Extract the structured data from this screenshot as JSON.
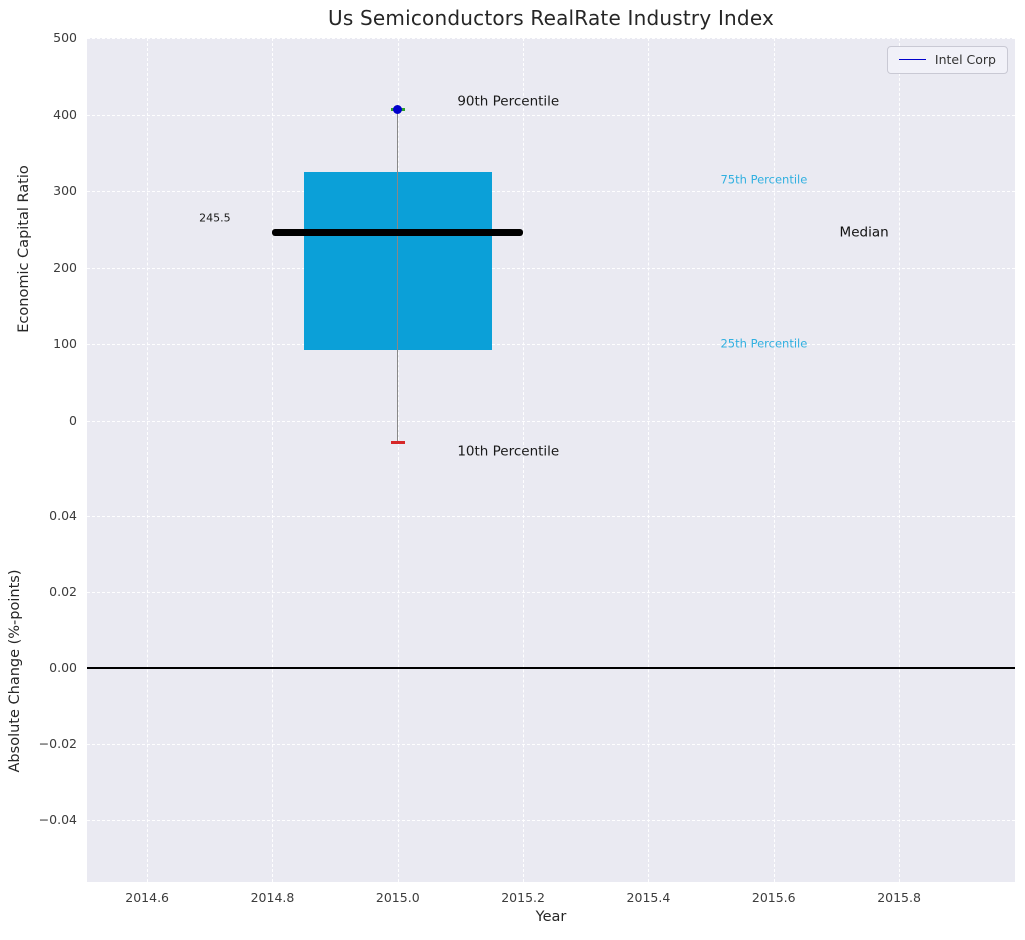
{
  "title": "Us Semiconductors RealRate Industry Index",
  "legend": {
    "position": "upper right",
    "items": [
      {
        "label": "Intel Corp",
        "color": "#0000cc"
      }
    ]
  },
  "axes": {
    "x": {
      "label": "Year",
      "range": [
        2014.504,
        2015.985
      ],
      "tick_values": [
        2014.6,
        2014.8,
        2015.0,
        2015.2,
        2015.4,
        2015.6,
        2015.8
      ],
      "tick_labels": [
        "2014.6",
        "2014.8",
        "2015.0",
        "2015.2",
        "2015.4",
        "2015.6",
        "2015.8"
      ]
    },
    "y_top": {
      "label": "Economic Capital Ratio",
      "range": [
        -51,
        500
      ],
      "tick_values": [
        0,
        100,
        200,
        300,
        400,
        500
      ],
      "tick_labels": [
        "0",
        "100",
        "200",
        "300",
        "400",
        "500"
      ]
    },
    "y_bottom": {
      "label": "Absolute Change (%-points)",
      "range": [
        -0.0563,
        0.0547
      ],
      "tick_values": [
        -0.04,
        -0.02,
        0,
        0.02,
        0.04
      ],
      "tick_labels": [
        "−0.04",
        "−0.02",
        "0.00",
        "0.02",
        "0.04"
      ]
    }
  },
  "chart_data": {
    "type": "box",
    "title": "Us Semiconductors RealRate Industry Index",
    "xlabel": "Year",
    "ylabel_top": "Economic Capital Ratio",
    "ylabel_bottom": "Absolute Change (%-points)",
    "grid": true,
    "legend_position": "upper right",
    "box_plot": {
      "x": 2015.0,
      "p10": -28,
      "p25": 93,
      "median": 245.5,
      "p75": 325,
      "p90": 407,
      "box_x_span": [
        2014.85,
        2015.15
      ],
      "median_x_span": [
        2014.8,
        2015.2
      ],
      "cap_half_width": 0.011
    },
    "intel_point": {
      "series": "Intel Corp",
      "x": 2015.0,
      "y": 407
    },
    "bottom_plot": {
      "zero_line_y": 0.0,
      "series": []
    },
    "annotations": [
      {
        "text": "245.5",
        "x": 2014.683,
        "y": 265,
        "color": "#1a1a1a",
        "size": 11
      },
      {
        "text": "90th Percentile",
        "x": 2015.095,
        "y": 417,
        "color": "#1a1a1a",
        "size": 13.5
      },
      {
        "text": "75th Percentile",
        "x": 2015.515,
        "y": 314,
        "color": "#31b0e0",
        "size": 11.5
      },
      {
        "text": "Median",
        "x": 2015.705,
        "y": 245,
        "color": "#111111",
        "size": 13.5
      },
      {
        "text": "25th Percentile",
        "x": 2015.515,
        "y": 100,
        "color": "#31b0e0",
        "size": 11.5
      },
      {
        "text": "10th Percentile",
        "x": 2015.095,
        "y": -40,
        "color": "#1a1a1a",
        "size": 13.5
      }
    ]
  },
  "colors": {
    "plot_background": "#eaeaf2",
    "grid": "#ffffff",
    "box_fill": "#0ba0d8",
    "median_line": "#000000",
    "whisker": "#888888",
    "cap_high": "#2ca02c",
    "cap_low": "#d62728",
    "intel_marker": "#0000cc",
    "zero_line": "#000000"
  }
}
